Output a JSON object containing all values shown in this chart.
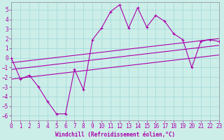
{
  "xlabel": "Windchill (Refroidissement éolien,°C)",
  "background_color": "#cceee8",
  "grid_color": "#aadddd",
  "line_color": "#aa00aa",
  "xlim": [
    0,
    23
  ],
  "ylim": [
    -6.5,
    5.8
  ],
  "xticks": [
    0,
    1,
    2,
    3,
    4,
    5,
    6,
    7,
    8,
    9,
    10,
    11,
    12,
    13,
    14,
    15,
    16,
    17,
    18,
    19,
    20,
    21,
    22,
    23
  ],
  "yticks": [
    -6,
    -5,
    -4,
    -3,
    -2,
    -1,
    0,
    1,
    2,
    3,
    4,
    5
  ],
  "series1_x": [
    0,
    1,
    2,
    3,
    4,
    5,
    6,
    7,
    8,
    9,
    10,
    11,
    12,
    13,
    14,
    15,
    16,
    17,
    18,
    19,
    20,
    21,
    22,
    23
  ],
  "series1_y": [
    0,
    -2.2,
    -1.8,
    -3.0,
    -4.5,
    -5.8,
    -5.8,
    -1.2,
    -3.3,
    1.9,
    3.1,
    4.8,
    5.5,
    3.1,
    5.2,
    3.2,
    4.4,
    3.8,
    2.5,
    1.9,
    -1.0,
    1.7,
    1.9,
    1.7
  ],
  "line1_x": [
    0,
    23
  ],
  "line1_y": [
    -0.5,
    2.0
  ],
  "line2_x": [
    0,
    23
  ],
  "line2_y": [
    -1.2,
    1.3
  ],
  "line3_x": [
    0,
    23
  ],
  "line3_y": [
    -2.2,
    0.3
  ],
  "tick_fontsize": 5.5,
  "xlabel_fontsize": 5.5
}
